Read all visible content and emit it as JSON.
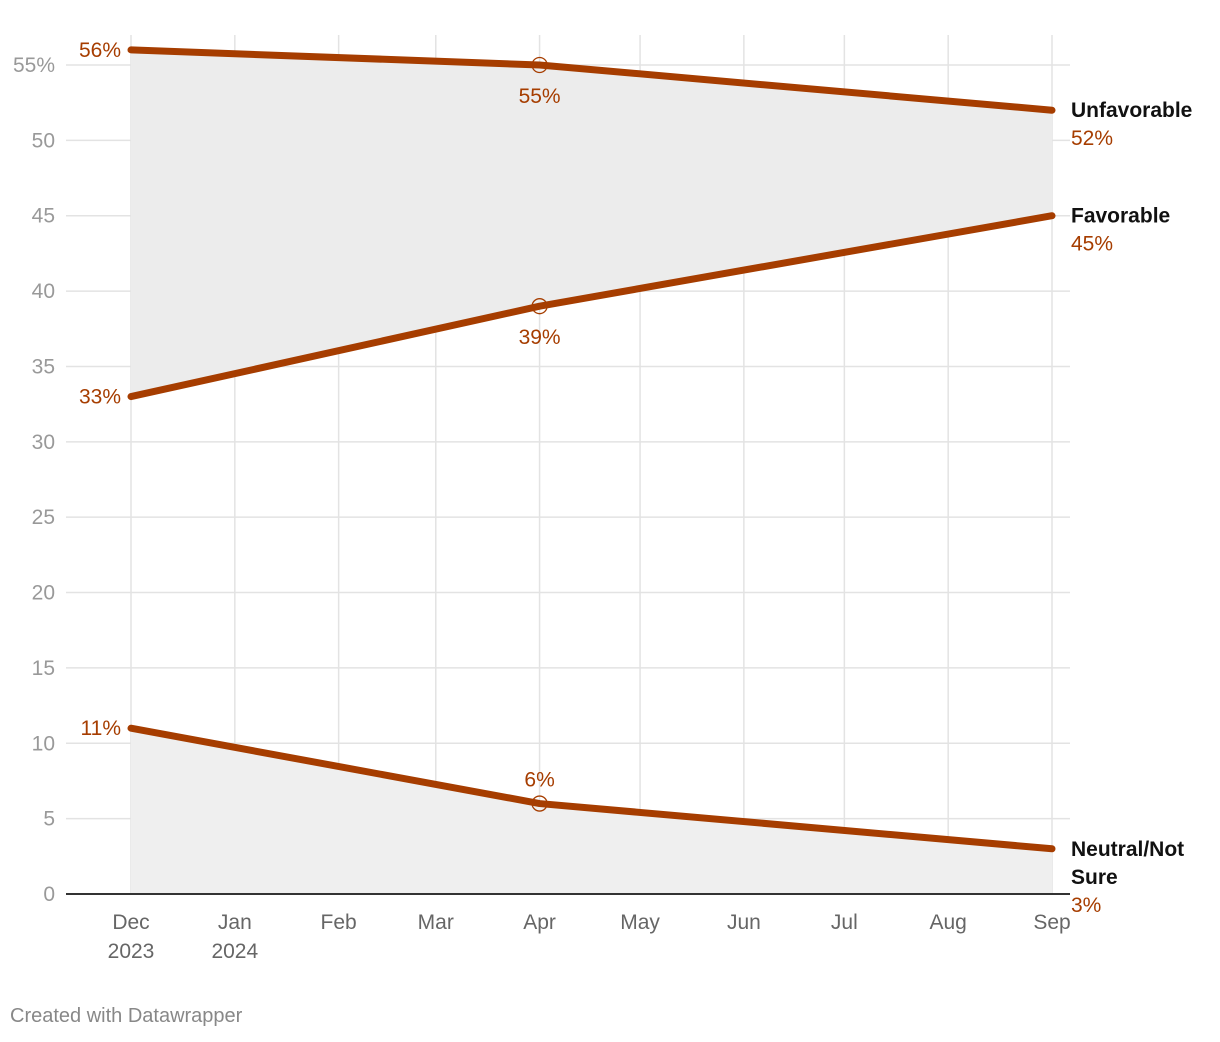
{
  "chart_data": {
    "type": "line",
    "title": "",
    "xlabel": "",
    "ylabel": "",
    "ylim": [
      0,
      55
    ],
    "yticks": [
      {
        "value": 0,
        "label": "0"
      },
      {
        "value": 5,
        "label": "5"
      },
      {
        "value": 10,
        "label": "10"
      },
      {
        "value": 15,
        "label": "15"
      },
      {
        "value": 20,
        "label": "20"
      },
      {
        "value": 25,
        "label": "25"
      },
      {
        "value": 30,
        "label": "30"
      },
      {
        "value": 35,
        "label": "35"
      },
      {
        "value": 40,
        "label": "40"
      },
      {
        "value": 45,
        "label": "45"
      },
      {
        "value": 50,
        "label": "50"
      },
      {
        "value": 55,
        "label": "55%"
      }
    ],
    "xticks": [
      {
        "date": "2023-12-01",
        "line1": "Dec",
        "line2": "2023"
      },
      {
        "date": "2024-01-01",
        "line1": "Jan",
        "line2": "2024"
      },
      {
        "date": "2024-02-01",
        "line1": "Feb",
        "line2": ""
      },
      {
        "date": "2024-03-01",
        "line1": "Mar",
        "line2": ""
      },
      {
        "date": "2024-04-01",
        "line1": "Apr",
        "line2": ""
      },
      {
        "date": "2024-05-01",
        "line1": "May",
        "line2": ""
      },
      {
        "date": "2024-06-01",
        "line1": "Jun",
        "line2": ""
      },
      {
        "date": "2024-07-01",
        "line1": "Jul",
        "line2": ""
      },
      {
        "date": "2024-08-01",
        "line1": "Aug",
        "line2": ""
      },
      {
        "date": "2024-09-01",
        "line1": "Sep",
        "line2": ""
      }
    ],
    "x": [
      "2023-12-01",
      "2024-04-01",
      "2024-09-01"
    ],
    "series": [
      {
        "name": "Unfavorable",
        "values": [
          56,
          55,
          52
        ],
        "labels": [
          "56%",
          "55%",
          "52%"
        ],
        "color": "#a63d00"
      },
      {
        "name": "Favorable",
        "values": [
          33,
          39,
          45
        ],
        "labels": [
          "33%",
          "39%",
          "45%"
        ],
        "color": "#a63d00"
      },
      {
        "name": "Neutral/Not Sure",
        "name_lines": [
          "Neutral/Not",
          "Sure"
        ],
        "values": [
          11,
          6,
          3
        ],
        "labels": [
          "11%",
          "6%",
          "3%"
        ],
        "color": "#a63d00"
      }
    ],
    "grid": true,
    "legend": "right-inline",
    "area_fill": "#ececec"
  },
  "footer": {
    "credit": "Created with Datawrapper"
  }
}
